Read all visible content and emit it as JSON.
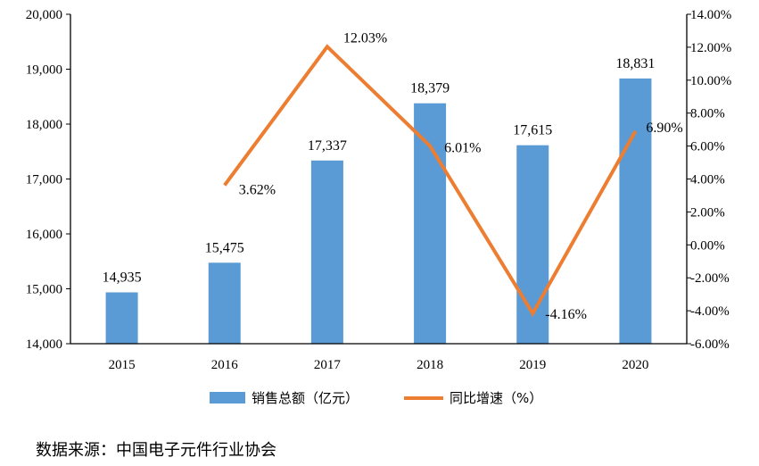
{
  "chart_data": {
    "type": "bar",
    "categories": [
      "2015",
      "2016",
      "2017",
      "2018",
      "2019",
      "2020"
    ],
    "series": [
      {
        "name": "销售总额（亿元）",
        "type": "bar",
        "axis": "left",
        "color": "#5B9BD5",
        "values": [
          14935,
          15475,
          17337,
          18379,
          17615,
          18831
        ],
        "labels": [
          "14,935",
          "15,475",
          "17,337",
          "18,379",
          "17,615",
          "18,831"
        ]
      },
      {
        "name": "同比增速（%）",
        "type": "line",
        "axis": "right",
        "color": "#ED7D31",
        "values": [
          null,
          3.62,
          12.03,
          6.01,
          -4.16,
          6.9
        ],
        "labels": [
          "",
          "3.62%",
          "12.03%",
          "6.01%",
          "-4.16%",
          "6.90%"
        ]
      }
    ],
    "ylim_left": [
      14000,
      20000
    ],
    "ylim_right": [
      -6,
      14
    ],
    "yticks_left": [
      "14,000",
      "15,000",
      "16,000",
      "17,000",
      "18,000",
      "19,000",
      "20,000"
    ],
    "yticks_right": [
      "-6.00%",
      "-4.00%",
      "-2.00%",
      "0.00%",
      "2.00%",
      "4.00%",
      "6.00%",
      "8.00%",
      "10.00%",
      "12.00%",
      "14.00%"
    ],
    "legend_position": "bottom",
    "grid": false
  },
  "source_text": "数据来源：中国电子元件行业协会"
}
